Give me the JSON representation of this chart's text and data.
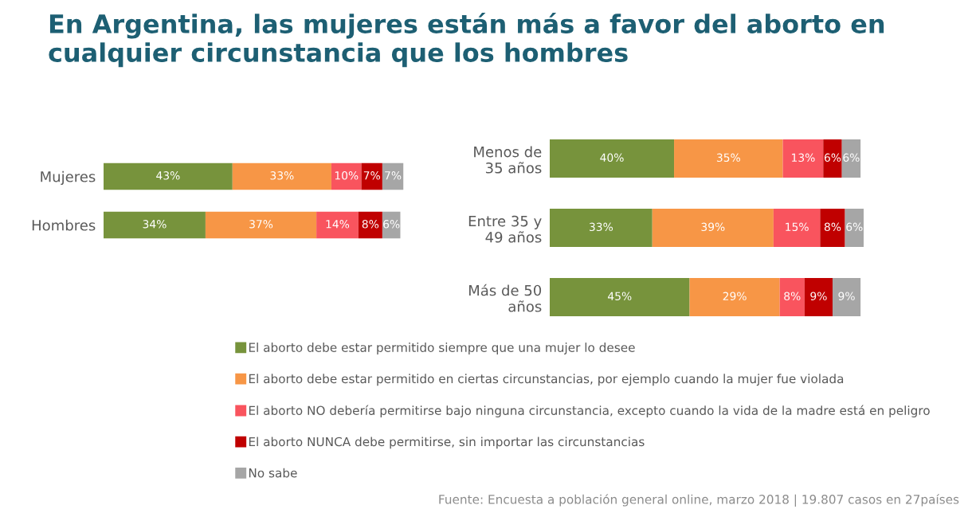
{
  "chart_data": [
    {
      "type": "bar",
      "orientation": "horizontal",
      "stacked": true,
      "title": "En Argentina, las mujeres están más a favor del aborto en cualquier circunstancia que los hombres",
      "categories": [
        "Mujeres",
        "Hombres"
      ],
      "xlim": [
        0,
        101
      ],
      "tick_labels": false,
      "legend": "bottom",
      "annotations": [
        "Fuente: Encuesta a población general online, marzo 2018 | 19.807 casos en 27países"
      ],
      "series": [
        {
          "name": "El aborto debe estar permitido siempre que una mujer lo desee",
          "color": "#77933c",
          "values": [
            43,
            34
          ],
          "value_labels": [
            "43%",
            "34%"
          ]
        },
        {
          "name": "El aborto debe estar permitido en ciertas circunstancias, por ejemplo cuando la mujer fue violada",
          "color": "#f79646",
          "values": [
            33,
            37
          ],
          "value_labels": [
            "33%",
            "37%"
          ]
        },
        {
          "name": "El aborto NO debería permitirse bajo ninguna circunstancia, excepto cuando la vida de la madre está en peligro",
          "color": "#f9545e",
          "values": [
            10,
            14
          ],
          "value_labels": [
            "10%",
            "14%"
          ]
        },
        {
          "name": "El aborto NUNCA debe permitirse, sin importar las circunstancias",
          "color": "#c00000",
          "values": [
            7,
            8
          ],
          "value_labels": [
            "7%",
            "8%"
          ]
        },
        {
          "name": "No sabe",
          "color": "#a6a6a6",
          "values": [
            7,
            6
          ],
          "value_labels": [
            "7%",
            "6%"
          ]
        }
      ]
    },
    {
      "type": "bar",
      "orientation": "horizontal",
      "stacked": true,
      "categories": [
        "Menos de\n35 años",
        "Entre 35 y\n49 años",
        "Más de 50\naños"
      ],
      "xlim": [
        0,
        101
      ],
      "tick_labels": false,
      "series": [
        {
          "color": "#77933c",
          "values": [
            40,
            33,
            45
          ],
          "value_labels": [
            "40%",
            "33%",
            "45%"
          ]
        },
        {
          "color": "#f79646",
          "values": [
            35,
            39,
            29
          ],
          "value_labels": [
            "35%",
            "39%",
            "29%"
          ]
        },
        {
          "color": "#f9545e",
          "values": [
            13,
            15,
            8
          ],
          "value_labels": [
            "13%",
            "15%",
            "8%"
          ]
        },
        {
          "color": "#c00000",
          "values": [
            6,
            8,
            9
          ],
          "value_labels": [
            "6%",
            "8%",
            "9%"
          ]
        },
        {
          "color": "#a6a6a6",
          "values": [
            6,
            6,
            9
          ],
          "value_labels": [
            "6%",
            "6%",
            "9%"
          ]
        }
      ]
    }
  ]
}
